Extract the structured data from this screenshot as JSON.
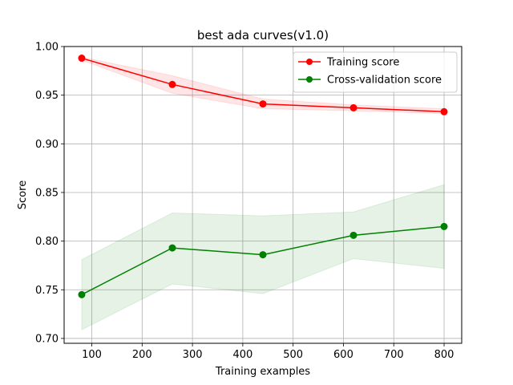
{
  "chart_data": {
    "type": "line",
    "title": "best ada curves(v1.0)",
    "xlabel": "Training examples",
    "ylabel": "Score",
    "xlim": [
      45,
      835
    ],
    "ylim": [
      0.695,
      1.0
    ],
    "xticks": [
      100,
      200,
      300,
      400,
      500,
      600,
      700,
      800
    ],
    "yticks": [
      0.7,
      0.75,
      0.8,
      0.85,
      0.9,
      0.95,
      1.0
    ],
    "ytick_labels": [
      "0.70",
      "0.75",
      "0.80",
      "0.85",
      "0.90",
      "0.95",
      "1.00"
    ],
    "grid": true,
    "legend_position": "top-right",
    "x": [
      80,
      260,
      440,
      620,
      800
    ],
    "series": [
      {
        "name": "Training score",
        "color": "#ff0000",
        "values": [
          0.988,
          0.961,
          0.941,
          0.937,
          0.933
        ],
        "band_lower": [
          0.986,
          0.952,
          0.936,
          0.934,
          0.931
        ],
        "band_upper": [
          0.989,
          0.97,
          0.946,
          0.94,
          0.936
        ]
      },
      {
        "name": "Cross-validation score",
        "color": "#008000",
        "values": [
          0.745,
          0.793,
          0.786,
          0.806,
          0.815
        ],
        "band_lower": [
          0.709,
          0.756,
          0.746,
          0.782,
          0.772
        ],
        "band_upper": [
          0.781,
          0.829,
          0.826,
          0.83,
          0.858
        ]
      }
    ]
  }
}
